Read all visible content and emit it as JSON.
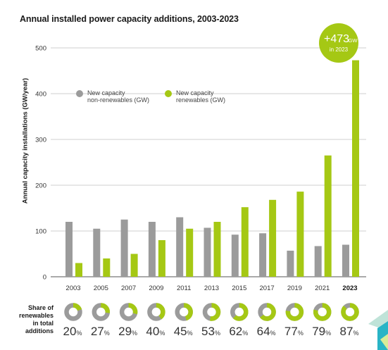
{
  "title": "Annual installed power capacity additions, 2003-2023",
  "share_label": "Share of renewables in total additions",
  "colors": {
    "non_renewable": "#9b9b9b",
    "renewable": "#a5c814",
    "accent_teal": "#29b4c6",
    "accent_light": "#bfe3d8"
  },
  "callout": {
    "main": "+473",
    "unit": "GW",
    "sub": "in 2023"
  },
  "chart_data": {
    "type": "bar",
    "title": "Annual installed power capacity additions, 2003-2023",
    "xlabel": "",
    "ylabel": "Annual capacity installations (GW/year)",
    "ylim": [
      0,
      500
    ],
    "yticks": [
      0,
      100,
      200,
      300,
      400,
      500
    ],
    "grid": true,
    "legend_position": "top-left",
    "categories": [
      "2003",
      "2005",
      "2007",
      "2009",
      "2011",
      "2013",
      "2015",
      "2017",
      "2019",
      "2021",
      "2023"
    ],
    "highlight_category": "2023",
    "series": [
      {
        "name": "New capacity non-renewables (GW)",
        "legend_lines": [
          "New capacity",
          "non-renewables (GW)"
        ],
        "color": "#9b9b9b",
        "values": [
          120,
          105,
          125,
          120,
          130,
          107,
          92,
          95,
          57,
          67,
          70
        ]
      },
      {
        "name": "New capacity renewables (GW)",
        "legend_lines": [
          "New capacity",
          "renewables (GW)"
        ],
        "color": "#a5c814",
        "values": [
          30,
          40,
          50,
          80,
          105,
          120,
          152,
          168,
          186,
          265,
          473
        ]
      }
    ],
    "share_of_renewables": {
      "values": [
        20,
        27,
        29,
        40,
        45,
        53,
        62,
        64,
        77,
        79,
        87
      ],
      "unit": "%"
    }
  }
}
